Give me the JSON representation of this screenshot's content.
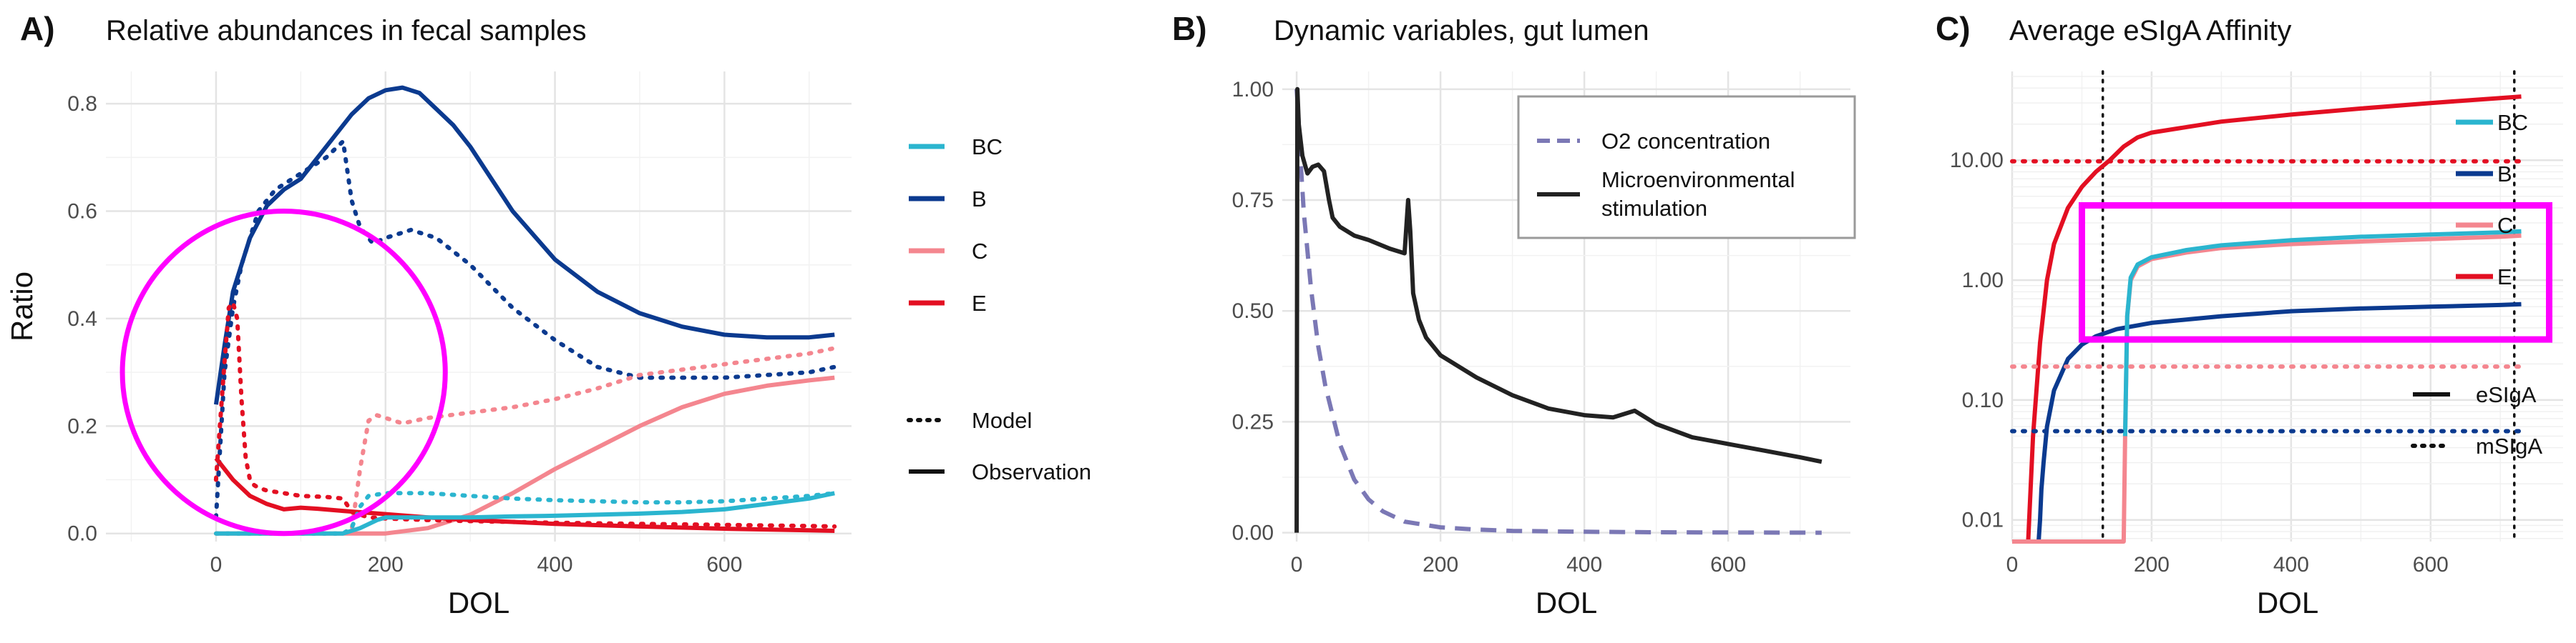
{
  "chart_data": [
    {
      "panel_tag": "A)",
      "title": "Relative abundances in fecal samples",
      "type": "line",
      "xlabel": "DOL",
      "ylabel": "Ratio",
      "xlim": [
        -130,
        750
      ],
      "ylim": [
        -0.015,
        0.86
      ],
      "xticks": [
        0,
        200,
        400,
        600
      ],
      "xtick_labels": [
        "0",
        "200",
        "400",
        "600"
      ],
      "yticks": [
        0,
        0.2,
        0.4,
        0.6,
        0.8
      ],
      "ytick_labels": [
        "0.0",
        "0.2",
        "0.4",
        "0.6",
        "0.8"
      ],
      "grid": true,
      "legend_placement": "right",
      "legend": {
        "species": [
          {
            "label": "BC",
            "color": "#2BB5CF"
          },
          {
            "label": "B",
            "color": "#0B3A8F"
          },
          {
            "label": "C",
            "color": "#F4868F"
          },
          {
            "label": "E",
            "color": "#E30F22"
          }
        ],
        "types": [
          {
            "label": "Model",
            "dash": "dotted"
          },
          {
            "label": "Observation",
            "dash": "solid"
          }
        ]
      },
      "series": [
        {
          "species": "B",
          "kind": "Model",
          "color": "#0B3A8F",
          "x": [
            0,
            10,
            20,
            30,
            50,
            70,
            100,
            130,
            150,
            160,
            170,
            185,
            200,
            230,
            260,
            300,
            350,
            400,
            450,
            500,
            550,
            600,
            650,
            700,
            730
          ],
          "y": [
            0.03,
            0.3,
            0.42,
            0.5,
            0.6,
            0.64,
            0.67,
            0.7,
            0.73,
            0.62,
            0.57,
            0.54,
            0.55,
            0.565,
            0.55,
            0.5,
            0.42,
            0.36,
            0.31,
            0.29,
            0.29,
            0.29,
            0.295,
            0.3,
            0.31
          ]
        },
        {
          "species": "B",
          "kind": "Observation",
          "color": "#0B3A8F",
          "x": [
            0,
            10,
            20,
            40,
            60,
            80,
            100,
            130,
            160,
            180,
            200,
            220,
            240,
            260,
            280,
            300,
            350,
            400,
            450,
            500,
            550,
            600,
            650,
            700,
            730
          ],
          "y": [
            0.24,
            0.35,
            0.45,
            0.55,
            0.61,
            0.64,
            0.66,
            0.72,
            0.78,
            0.81,
            0.825,
            0.83,
            0.82,
            0.79,
            0.76,
            0.72,
            0.6,
            0.51,
            0.45,
            0.41,
            0.385,
            0.37,
            0.365,
            0.365,
            0.37
          ]
        },
        {
          "species": "C",
          "kind": "Model",
          "color": "#F4868F",
          "x": [
            0,
            100,
            150,
            160,
            170,
            180,
            190,
            200,
            220,
            250,
            300,
            350,
            400,
            450,
            500,
            550,
            600,
            650,
            700,
            730
          ],
          "y": [
            0,
            0,
            0,
            0.005,
            0.12,
            0.21,
            0.22,
            0.215,
            0.205,
            0.215,
            0.225,
            0.235,
            0.25,
            0.27,
            0.295,
            0.305,
            0.315,
            0.325,
            0.335,
            0.345
          ]
        },
        {
          "species": "C",
          "kind": "Observation",
          "color": "#F4868F",
          "x": [
            0,
            100,
            150,
            200,
            250,
            300,
            350,
            400,
            450,
            500,
            550,
            600,
            650,
            700,
            730
          ],
          "y": [
            0,
            0,
            0,
            0,
            0.01,
            0.035,
            0.075,
            0.12,
            0.16,
            0.2,
            0.235,
            0.26,
            0.275,
            0.285,
            0.29
          ]
        },
        {
          "species": "E",
          "kind": "Model",
          "color": "#E30F22",
          "x": [
            0,
            10,
            15,
            20,
            25,
            30,
            35,
            40,
            45,
            50,
            60,
            80,
            100,
            130,
            150,
            160,
            180,
            200,
            250,
            300,
            400,
            500,
            600,
            700,
            730
          ],
          "y": [
            0.1,
            0.32,
            0.42,
            0.43,
            0.4,
            0.25,
            0.14,
            0.1,
            0.09,
            0.085,
            0.08,
            0.075,
            0.07,
            0.068,
            0.065,
            0.04,
            0.03,
            0.028,
            0.025,
            0.023,
            0.02,
            0.018,
            0.016,
            0.014,
            0.013
          ]
        },
        {
          "species": "E",
          "kind": "Observation",
          "color": "#E30F22",
          "x": [
            0,
            20,
            40,
            60,
            80,
            100,
            120,
            150,
            200,
            250,
            300,
            400,
            500,
            600,
            700,
            730
          ],
          "y": [
            0.14,
            0.1,
            0.07,
            0.055,
            0.045,
            0.048,
            0.046,
            0.042,
            0.036,
            0.03,
            0.025,
            0.018,
            0.013,
            0.009,
            0.006,
            0.005
          ]
        },
        {
          "species": "BC",
          "kind": "Model",
          "color": "#2BB5CF",
          "x": [
            0,
            100,
            150,
            160,
            170,
            180,
            200,
            250,
            300,
            350,
            400,
            450,
            500,
            550,
            600,
            650,
            700,
            730
          ],
          "y": [
            0,
            0,
            0,
            0.01,
            0.05,
            0.07,
            0.075,
            0.075,
            0.07,
            0.065,
            0.062,
            0.06,
            0.058,
            0.058,
            0.06,
            0.065,
            0.07,
            0.075
          ]
        },
        {
          "species": "BC",
          "kind": "Observation",
          "color": "#2BB5CF",
          "x": [
            0,
            100,
            150,
            170,
            190,
            200,
            250,
            300,
            350,
            400,
            450,
            500,
            550,
            600,
            650,
            700,
            730
          ],
          "y": [
            0,
            0,
            0,
            0.01,
            0.025,
            0.03,
            0.03,
            0.03,
            0.032,
            0.033,
            0.035,
            0.037,
            0.04,
            0.045,
            0.055,
            0.065,
            0.075
          ]
        }
      ],
      "annotations": [
        {
          "shape": "circle",
          "color": "#FF00FF",
          "center_data": [
            80,
            0.3
          ]
        }
      ]
    },
    {
      "panel_tag": "B)",
      "title": "Dynamic variables, gut lumen",
      "type": "line",
      "xlabel": "DOL",
      "ylabel": "",
      "xlim": [
        -20,
        770
      ],
      "ylim": [
        -0.02,
        1.04
      ],
      "xticks": [
        0,
        200,
        400,
        600
      ],
      "xtick_labels": [
        "0",
        "200",
        "400",
        "600"
      ],
      "yticks": [
        0,
        0.25,
        0.5,
        0.75,
        1.0
      ],
      "ytick_labels": [
        "0.00",
        "0.25",
        "0.50",
        "0.75",
        "1.00"
      ],
      "grid": true,
      "legend_placement": "top-right",
      "legend": [
        {
          "label": "O2 concentration",
          "color": "#7B78B5",
          "dash": "dashed"
        },
        {
          "label": "Microenvironmental",
          "label_line2": "stimulation",
          "color": "#222222",
          "dash": "solid"
        }
      ],
      "series": [
        {
          "label": "O2 concentration",
          "color": "#7B78B5",
          "dash": "dashed",
          "x": [
            0,
            2,
            5,
            10,
            20,
            30,
            40,
            60,
            80,
            100,
            120,
            150,
            200,
            250,
            300,
            400,
            500,
            600,
            730
          ],
          "y": [
            1.0,
            0.95,
            0.85,
            0.72,
            0.55,
            0.42,
            0.33,
            0.2,
            0.12,
            0.075,
            0.048,
            0.025,
            0.012,
            0.007,
            0.004,
            0.002,
            0.001,
            0.0005,
            0
          ]
        },
        {
          "label": "Microenvironmental stimulation",
          "color": "#222222",
          "dash": "solid",
          "x": [
            0,
            1,
            3,
            8,
            15,
            22,
            30,
            38,
            45,
            50,
            60,
            80,
            100,
            130,
            150,
            155,
            158,
            162,
            170,
            180,
            200,
            250,
            300,
            350,
            400,
            440,
            460,
            470,
            480,
            500,
            550,
            600,
            650,
            700,
            730
          ],
          "y": [
            0,
            1.0,
            0.92,
            0.85,
            0.81,
            0.825,
            0.83,
            0.815,
            0.75,
            0.71,
            0.69,
            0.67,
            0.66,
            0.64,
            0.63,
            0.75,
            0.68,
            0.54,
            0.48,
            0.44,
            0.4,
            0.35,
            0.31,
            0.28,
            0.265,
            0.26,
            0.27,
            0.275,
            0.265,
            0.245,
            0.215,
            0.2,
            0.185,
            0.17,
            0.16
          ]
        }
      ]
    },
    {
      "panel_tag": "C)",
      "title": "Average eSIgA Affinity",
      "type": "line",
      "xlabel": "DOL",
      "ylabel": "",
      "y_scale": "log10",
      "xlim": [
        0,
        790
      ],
      "ylim": [
        0.0066,
        55
      ],
      "xticks": [
        0,
        200,
        400,
        600
      ],
      "xtick_labels": [
        "0",
        "200",
        "400",
        "600"
      ],
      "yticks": [
        0.01,
        0.1,
        1,
        10
      ],
      "ytick_labels": [
        "0.01",
        "0.10",
        "1.00",
        "10.00"
      ],
      "grid": true,
      "legend_placement": "right",
      "legend": {
        "species": [
          {
            "label": "BC",
            "color": "#2BB5CF"
          },
          {
            "label": "B",
            "color": "#0B3A8F"
          },
          {
            "label": "C",
            "color": "#F4868F"
          },
          {
            "label": "E",
            "color": "#E30F22"
          }
        ],
        "types": [
          {
            "label": "eSIgA",
            "dash": "solid"
          },
          {
            "label": "mSIgA",
            "dash": "dotted"
          }
        ]
      },
      "vertical_dotted_lines_x": [
        130,
        720
      ],
      "series": [
        {
          "species": "E",
          "kind": "eSIgA",
          "color": "#E30F22",
          "x": [
            0,
            23,
            25,
            30,
            40,
            50,
            60,
            80,
            100,
            120,
            140,
            160,
            180,
            200,
            300,
            400,
            500,
            600,
            700,
            730
          ],
          "y": [
            0.0066,
            0.0066,
            0.012,
            0.05,
            0.3,
            1.0,
            2.0,
            4.0,
            6.0,
            8.0,
            10.0,
            13.0,
            15.5,
            17.0,
            21.0,
            24.0,
            27.0,
            30.0,
            33.0,
            34.0
          ]
        },
        {
          "species": "B",
          "kind": "eSIgA",
          "color": "#0B3A8F",
          "x": [
            38,
            40,
            42,
            45,
            50,
            60,
            80,
            100,
            120,
            150,
            200,
            300,
            400,
            500,
            600,
            700,
            730
          ],
          "y": [
            0.0066,
            0.01,
            0.018,
            0.03,
            0.06,
            0.12,
            0.22,
            0.29,
            0.34,
            0.39,
            0.44,
            0.5,
            0.55,
            0.58,
            0.6,
            0.62,
            0.63
          ]
        },
        {
          "species": "C",
          "kind": "eSIgA",
          "color": "#F4868F",
          "x": [
            0,
            160,
            162,
            165,
            170,
            180,
            200,
            250,
            300,
            400,
            500,
            600,
            700,
            730
          ],
          "y": [
            0.0066,
            0.0066,
            0.05,
            0.5,
            1.0,
            1.3,
            1.5,
            1.7,
            1.85,
            2.0,
            2.1,
            2.2,
            2.3,
            2.35
          ]
        },
        {
          "species": "BC",
          "kind": "eSIgA",
          "color": "#2BB5CF",
          "x": [
            162,
            165,
            170,
            180,
            200,
            250,
            300,
            400,
            500,
            600,
            700,
            730
          ],
          "y": [
            0.05,
            0.5,
            1.05,
            1.35,
            1.55,
            1.78,
            1.95,
            2.15,
            2.3,
            2.4,
            2.5,
            2.55
          ]
        },
        {
          "species": "E",
          "kind": "mSIgA",
          "color": "#E30F22",
          "x": [
            0,
            730
          ],
          "y": [
            9.8,
            9.8
          ]
        },
        {
          "species": "C",
          "kind": "mSIgA",
          "color": "#F4868F",
          "x": [
            0,
            730
          ],
          "y": [
            0.19,
            0.19
          ]
        },
        {
          "species": "B",
          "kind": "mSIgA",
          "color": "#0B3A8F",
          "x": [
            0,
            730
          ],
          "y": [
            0.055,
            0.055
          ]
        }
      ],
      "annotations": [
        {
          "shape": "rectangle",
          "color": "#FF00FF",
          "x_range_data": [
            100,
            770
          ],
          "y_range_data": [
            0.32,
            4.2
          ]
        }
      ]
    }
  ]
}
